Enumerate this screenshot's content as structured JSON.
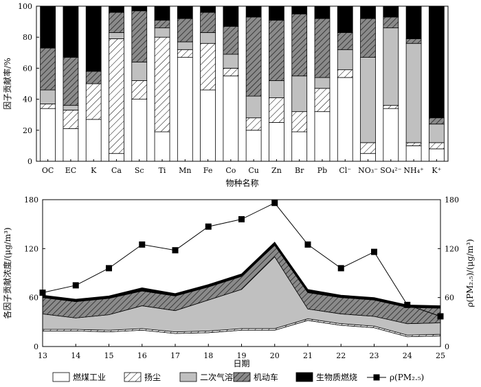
{
  "chart_data": [
    {
      "type": "bar",
      "stacked": true,
      "ylabel": "因子贡献率/%",
      "xlabel": "物种名称",
      "ylim": [
        0,
        100
      ],
      "yticks": [
        0,
        20,
        40,
        60,
        80,
        100
      ],
      "categories": [
        "OC",
        "EC",
        "K",
        "Ca",
        "Sc",
        "Ti",
        "Mn",
        "Fe",
        "Co",
        "Cu",
        "Zn",
        "Br",
        "Pb",
        "Cl⁻",
        "NO₃⁻",
        "SO₄²⁻",
        "NH₄⁺",
        "K⁺"
      ],
      "series": [
        {
          "name": "燃煤工业",
          "values": [
            34,
            21,
            27,
            5,
            40,
            19,
            67,
            46,
            55,
            20,
            25,
            19,
            32,
            54,
            5,
            34,
            10,
            8
          ]
        },
        {
          "name": "扬尘",
          "values": [
            3,
            12,
            23,
            74,
            12,
            61,
            5,
            30,
            5,
            8,
            16,
            13,
            15,
            5,
            7,
            2,
            2,
            4
          ]
        },
        {
          "name": "二次气溶胶",
          "values": [
            9,
            3,
            0,
            4,
            12,
            6,
            5,
            7,
            9,
            14,
            11,
            23,
            7,
            13,
            55,
            50,
            64,
            12
          ]
        },
        {
          "name": "机动车",
          "values": [
            27,
            31,
            8,
            13,
            33,
            5,
            15,
            13,
            18,
            51,
            39,
            40,
            38,
            11,
            25,
            7,
            3,
            4
          ]
        },
        {
          "name": "生物质燃烧",
          "values": [
            27,
            33,
            42,
            4,
            3,
            9,
            8,
            4,
            13,
            7,
            9,
            5,
            8,
            17,
            8,
            7,
            21,
            72
          ]
        }
      ]
    },
    {
      "type": "area",
      "stacked": true,
      "ylabel": "各因子贡献浓度/(μg/m³)",
      "y2label": "ρ(PM₂.₅)/(μg/m³)",
      "xlabel": "日期",
      "x": [
        13,
        14,
        15,
        16,
        17,
        18,
        19,
        20,
        21,
        22,
        23,
        24,
        25
      ],
      "ylim": [
        0,
        180
      ],
      "yticks": [
        0,
        60,
        120,
        180
      ],
      "series": [
        {
          "name": "燃煤工业",
          "values": [
            19,
            19,
            18,
            20,
            16,
            17,
            20,
            20,
            32,
            26,
            23,
            12,
            13
          ]
        },
        {
          "name": "扬尘",
          "values": [
            2,
            2,
            2,
            2,
            2,
            2,
            2,
            2,
            2,
            2,
            2,
            2,
            2
          ]
        },
        {
          "name": "二次气溶胶",
          "values": [
            19,
            14,
            19,
            28,
            26,
            38,
            48,
            88,
            12,
            12,
            12,
            14,
            14
          ]
        },
        {
          "name": "机动车",
          "values": [
            20,
            20,
            20,
            18,
            18,
            16,
            16,
            14,
            20,
            20,
            20,
            20,
            18
          ]
        },
        {
          "name": "生物质燃烧",
          "values": [
            3,
            3,
            3,
            4,
            3,
            3,
            3,
            4,
            4,
            3,
            3,
            3,
            3
          ]
        },
        {
          "name": "ρ(PM₂.₅)",
          "type": "line",
          "axis": "right",
          "values": [
            66,
            75,
            96,
            125,
            118,
            147,
            156,
            176,
            125,
            96,
            116,
            51,
            37
          ]
        }
      ]
    }
  ],
  "legend": {
    "colors": [
      "#ffffff",
      "hatch-light",
      "#c0c0c0",
      "hatch-dark",
      "#000000"
    ],
    "items": [
      "燃煤工业",
      "扬尘",
      "二次气溶胶",
      "机动车",
      "生物质燃烧",
      "ρ(PM₂.₅)"
    ]
  }
}
